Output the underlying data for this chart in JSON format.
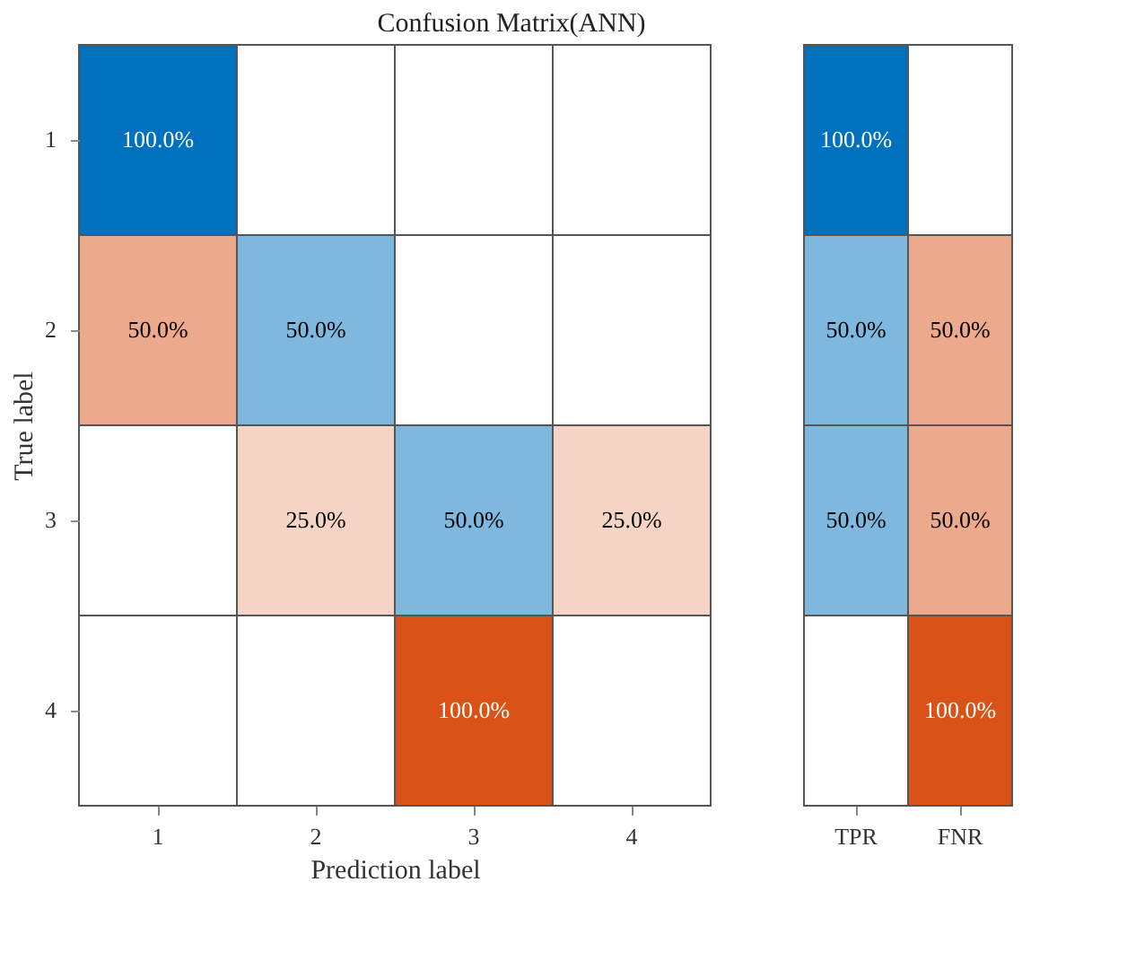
{
  "chart_data": [
    {
      "type": "heatmap",
      "title": "Confusion Matrix(ANN)",
      "xlabel": "Prediction label",
      "ylabel": "True label",
      "categories": [
        "1",
        "2",
        "3",
        "4"
      ],
      "y_categories": [
        "1",
        "2",
        "3",
        "4"
      ],
      "cells": [
        [
          100,
          null,
          null,
          null
        ],
        [
          50,
          50,
          null,
          null
        ],
        [
          null,
          25,
          50,
          25
        ],
        [
          null,
          null,
          100,
          null
        ]
      ],
      "cell_labels": [
        [
          "100.0%",
          null,
          null,
          null
        ],
        [
          "50.0%",
          "50.0%",
          null,
          null
        ],
        [
          null,
          "25.0%",
          "50.0%",
          "25.0%"
        ],
        [
          null,
          null,
          "100.0%",
          null
        ]
      ],
      "colors": [
        [
          "#0072bd",
          null,
          null,
          null
        ],
        [
          "#d95319",
          "#0072bd",
          null,
          null
        ],
        [
          null,
          "#d95319",
          "#0072bd",
          "#d95319"
        ],
        [
          null,
          null,
          "#d95319",
          null
        ]
      ]
    },
    {
      "type": "heatmap",
      "categories": [
        "TPR",
        "FNR"
      ],
      "y_categories": [
        "1",
        "2",
        "3",
        "4"
      ],
      "tick_labels": "x",
      "cells": [
        [
          100,
          null
        ],
        [
          50,
          50
        ],
        [
          50,
          50
        ],
        [
          null,
          100
        ]
      ],
      "cell_labels": [
        [
          "100.0%",
          null
        ],
        [
          "50.0%",
          "50.0%"
        ],
        [
          "50.0%",
          "50.0%"
        ],
        [
          null,
          "100.0%"
        ]
      ],
      "colors": [
        [
          "#0072bd",
          null
        ],
        [
          "#0072bd",
          "#d95319"
        ],
        [
          "#0072bd",
          "#d95319"
        ],
        [
          null,
          "#d95319"
        ]
      ]
    }
  ]
}
